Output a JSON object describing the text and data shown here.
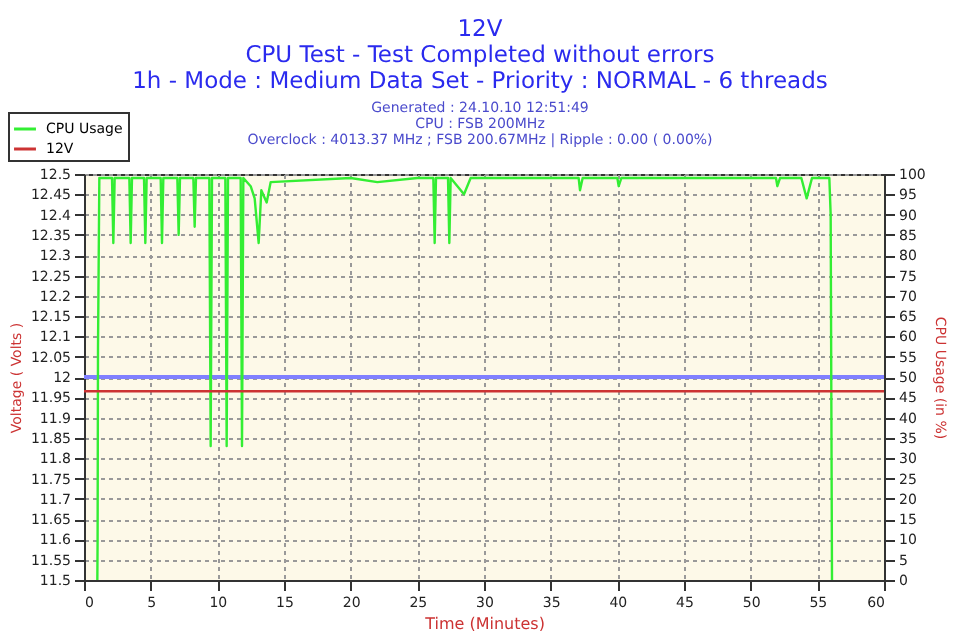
{
  "chart_data": {
    "type": "line",
    "title": "12V",
    "subtitle": "CPU Test - Test Completed without errors\n1h - Mode : Medium Data Set - Priority : NORMAL - 6 threads",
    "annotations": [
      "Generated : 24.10.10 12:51:49",
      "CPU : FSB 200MHz",
      "Overclock : 4013.37 MHz ; FSB 200.67MHz | Ripple : 0.00 ( 0.00%)"
    ],
    "xlabel": "Time (Minutes)",
    "ylabel": "Voltage ( Volts )",
    "y2label": "CPU Usage (in %)",
    "xlim": [
      0,
      60
    ],
    "xticks": [
      0,
      5,
      10,
      15,
      20,
      25,
      30,
      35,
      40,
      45,
      50,
      55,
      60
    ],
    "ylim": [
      11.5,
      12.5
    ],
    "yticks": [
      11.5,
      11.55,
      11.6,
      11.65,
      11.7,
      11.75,
      11.8,
      11.85,
      11.9,
      11.95,
      12,
      12.05,
      12.1,
      12.15,
      12.2,
      12.25,
      12.3,
      12.35,
      12.4,
      12.45,
      12.5
    ],
    "y2lim": [
      0,
      100
    ],
    "y2ticks": [
      0,
      5,
      10,
      15,
      20,
      25,
      30,
      35,
      40,
      45,
      50,
      55,
      60,
      65,
      70,
      75,
      80,
      85,
      90,
      95,
      100
    ],
    "grid": true,
    "legend": "top left",
    "ref_lines": [
      {
        "axis": "y",
        "value": 12,
        "color": "#8080ff"
      }
    ],
    "series": [
      {
        "name": "CPU Usage",
        "color": "#33ee33",
        "axis": "y2",
        "x": [
          1.0,
          1.02,
          1.05,
          1.15,
          2.1,
          2.2,
          2.3,
          3.4,
          3.5,
          3.6,
          4.5,
          4.6,
          4.7,
          5.75,
          5.85,
          5.95,
          7.0,
          7.1,
          7.2,
          8.2,
          8.3,
          8.4,
          9.4,
          9.5,
          9.6,
          10.6,
          10.7,
          10.8,
          11.75,
          11.85,
          11.95,
          12.5,
          12.8,
          13.1,
          13.3,
          13.7,
          14,
          20,
          22,
          25,
          26.2,
          26.3,
          26.4,
          27.3,
          27.4,
          27.5,
          28.5,
          29,
          37.1,
          37.2,
          37.4,
          40,
          40.1,
          40.3,
          51.9,
          52,
          52.2,
          53.8,
          54.2,
          54.6,
          55.9,
          56.0,
          56.1
        ],
        "values": [
          0,
          10,
          57,
          99,
          99,
          83,
          99,
          99,
          83,
          99,
          99,
          83,
          99,
          99,
          83,
          99,
          99,
          85,
          99,
          99,
          87,
          99,
          99,
          33,
          99,
          99,
          33,
          99,
          99,
          33,
          99,
          97,
          94,
          83,
          96,
          93,
          98,
          99,
          98,
          99,
          99,
          83,
          99,
          99,
          83,
          99,
          95,
          99,
          99,
          96,
          99,
          99,
          97,
          99,
          99,
          97,
          99,
          99,
          94,
          99,
          99,
          90,
          0
        ]
      },
      {
        "name": "12V",
        "color": "#cc3333",
        "x": [
          0,
          60
        ],
        "values": [
          11.965,
          11.965
        ]
      }
    ]
  }
}
